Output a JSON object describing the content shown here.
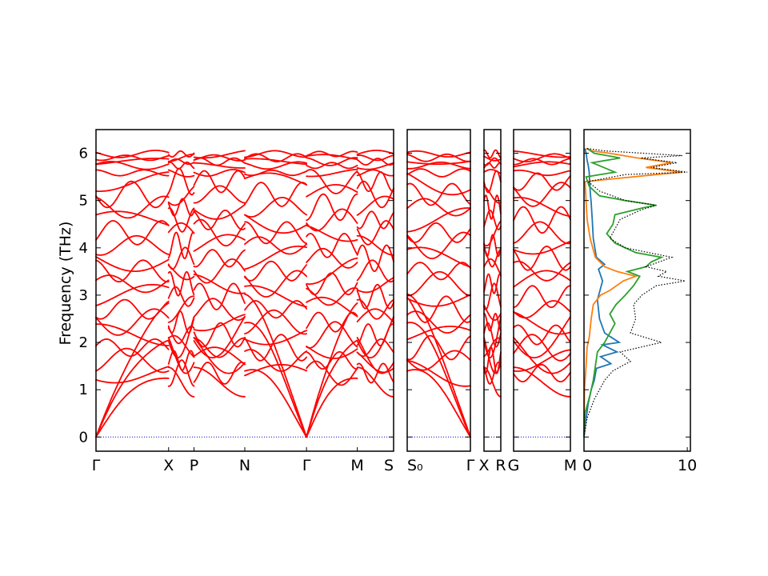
{
  "chart_data": {
    "type": "line",
    "ylabel": "Frequency (THz)",
    "ylim": [
      -0.3,
      6.5
    ],
    "y_ticks": [
      "0",
      "1",
      "2",
      "3",
      "4",
      "5",
      "6"
    ],
    "band_color": "#ff0000",
    "zero_line_color": "#0000cc",
    "path_segments": [
      {
        "from": "Γ",
        "to": "S",
        "x_ticks": [
          "Γ",
          "X",
          "P",
          "N",
          "Γ",
          "M",
          "S"
        ],
        "x_pos": [
          0,
          1.0,
          1.35,
          2.05,
          2.9,
          3.6,
          4.1
        ]
      },
      {
        "from": "S₀",
        "to": "Γ",
        "x_ticks": [
          "S₀",
          "Γ"
        ],
        "x_pos": [
          0,
          1
        ]
      },
      {
        "from": "X",
        "to": "R",
        "x_ticks": [
          "X",
          "R"
        ],
        "x_pos": [
          0,
          1
        ]
      },
      {
        "from": "G",
        "to": "M",
        "x_ticks": [
          "G",
          "M"
        ],
        "x_pos": [
          0,
          1
        ]
      }
    ],
    "dos": {
      "xlim": [
        0,
        10.3
      ],
      "x_ticks": [
        "0",
        "10"
      ],
      "series": [
        {
          "color": "#1f77b4",
          "style": "solid",
          "points": [
            [
              0.0,
              0
            ],
            [
              0.15,
              0.3
            ],
            [
              0.4,
              0.7
            ],
            [
              0.7,
              1.0
            ],
            [
              1.0,
              1.2
            ],
            [
              1.2,
              1.45
            ],
            [
              2.6,
              1.55
            ],
            [
              1.6,
              1.7
            ],
            [
              3.2,
              1.8
            ],
            [
              1.8,
              1.95
            ],
            [
              3.4,
              2.0
            ],
            [
              2.0,
              2.2
            ],
            [
              1.5,
              2.5
            ],
            [
              1.3,
              2.9
            ],
            [
              1.8,
              3.3
            ],
            [
              1.4,
              3.55
            ],
            [
              2.0,
              3.65
            ],
            [
              1.2,
              3.8
            ],
            [
              0.9,
              4.2
            ],
            [
              0.8,
              4.6
            ],
            [
              0.7,
              4.95
            ],
            [
              0.6,
              5.2
            ],
            [
              0.5,
              5.6
            ],
            [
              0.4,
              5.75
            ],
            [
              0.3,
              5.85
            ],
            [
              0.2,
              6.0
            ],
            [
              0.1,
              6.1
            ]
          ]
        },
        {
          "color": "#ff7f0e",
          "style": "solid",
          "points": [
            [
              0.0,
              0
            ],
            [
              0.05,
              1.0
            ],
            [
              0.2,
              1.5
            ],
            [
              0.3,
              1.9
            ],
            [
              0.5,
              2.1
            ],
            [
              0.7,
              2.5
            ],
            [
              0.9,
              2.8
            ],
            [
              1.6,
              3.0
            ],
            [
              2.5,
              3.1
            ],
            [
              3.8,
              3.3
            ],
            [
              5.0,
              3.4
            ],
            [
              3.2,
              3.5
            ],
            [
              2.0,
              3.6
            ],
            [
              1.1,
              3.8
            ],
            [
              0.6,
              4.2
            ],
            [
              0.3,
              4.6
            ],
            [
              0.2,
              5.0
            ],
            [
              0.1,
              5.4
            ],
            [
              7.0,
              5.55
            ],
            [
              9.5,
              5.6
            ],
            [
              6.0,
              5.7
            ],
            [
              8.5,
              5.8
            ],
            [
              5.2,
              5.9
            ],
            [
              2.5,
              6.0
            ],
            [
              0.8,
              6.05
            ],
            [
              0.2,
              6.1
            ]
          ]
        },
        {
          "color": "#2ca02c",
          "style": "solid",
          "points": [
            [
              0.0,
              0
            ],
            [
              0.1,
              0.5
            ],
            [
              0.6,
              0.9
            ],
            [
              0.9,
              1.2
            ],
            [
              1.1,
              1.5
            ],
            [
              1.3,
              1.8
            ],
            [
              2.0,
              2.0
            ],
            [
              2.5,
              2.2
            ],
            [
              3.0,
              2.4
            ],
            [
              2.5,
              2.6
            ],
            [
              3.1,
              2.8
            ],
            [
              4.0,
              3.0
            ],
            [
              4.8,
              3.2
            ],
            [
              5.4,
              3.4
            ],
            [
              4.2,
              3.5
            ],
            [
              6.0,
              3.6
            ],
            [
              6.5,
              3.7
            ],
            [
              7.5,
              3.8
            ],
            [
              5.0,
              3.9
            ],
            [
              3.0,
              4.1
            ],
            [
              2.2,
              4.3
            ],
            [
              2.8,
              4.5
            ],
            [
              3.0,
              4.7
            ],
            [
              5.8,
              4.85
            ],
            [
              7.0,
              4.9
            ],
            [
              4.0,
              5.0
            ],
            [
              1.5,
              5.1
            ],
            [
              0.5,
              5.3
            ],
            [
              0.2,
              5.5
            ],
            [
              3.0,
              5.6
            ],
            [
              0.8,
              5.8
            ],
            [
              3.5,
              5.9
            ],
            [
              1.0,
              6.0
            ],
            [
              0.3,
              6.1
            ]
          ]
        },
        {
          "color": "#000000",
          "style": "dotted",
          "points": [
            [
              0.0,
              0
            ],
            [
              0.3,
              0.4
            ],
            [
              1.0,
              0.8
            ],
            [
              1.5,
              1.0
            ],
            [
              2.0,
              1.2
            ],
            [
              2.8,
              1.4
            ],
            [
              4.5,
              1.6
            ],
            [
              3.5,
              1.8
            ],
            [
              7.5,
              2.0
            ],
            [
              4.5,
              2.2
            ],
            [
              5.0,
              2.5
            ],
            [
              4.8,
              2.8
            ],
            [
              5.6,
              3.0
            ],
            [
              7.0,
              3.2
            ],
            [
              9.8,
              3.3
            ],
            [
              7.2,
              3.4
            ],
            [
              8.0,
              3.5
            ],
            [
              6.0,
              3.6
            ],
            [
              8.5,
              3.8
            ],
            [
              4.0,
              4.0
            ],
            [
              2.5,
              4.2
            ],
            [
              3.0,
              4.4
            ],
            [
              3.5,
              4.6
            ],
            [
              5.5,
              4.8
            ],
            [
              7.0,
              4.9
            ],
            [
              4.0,
              5.0
            ],
            [
              1.5,
              5.2
            ],
            [
              0.4,
              5.4
            ],
            [
              4.0,
              5.55
            ],
            [
              10.0,
              5.6
            ],
            [
              6.5,
              5.7
            ],
            [
              9.0,
              5.8
            ],
            [
              5.5,
              5.9
            ],
            [
              9.5,
              5.95
            ],
            [
              2.0,
              6.05
            ],
            [
              0.3,
              6.1
            ]
          ]
        }
      ]
    }
  }
}
